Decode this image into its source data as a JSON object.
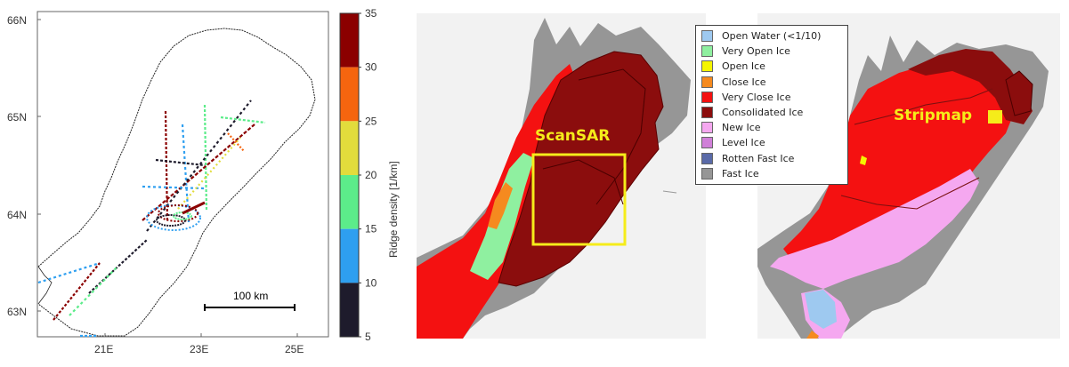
{
  "left_map": {
    "lat_ticks": [
      "66N",
      "65N",
      "64N",
      "63N"
    ],
    "lon_ticks": [
      "21E",
      "23E",
      "25E"
    ],
    "scale_bar_label": "100 km"
  },
  "colorbar": {
    "label": "Ridge density [1/km]",
    "ticks": [
      "35",
      "30",
      "25",
      "20",
      "15",
      "10",
      "5"
    ],
    "colors": [
      "#8b0000",
      "#f5650f",
      "#e2dc3c",
      "#5cec8a",
      "#2e9ff0",
      "#1e1b2c"
    ]
  },
  "center_map": {
    "box_label": "ScanSAR",
    "box_color": "#f5ec1a"
  },
  "right_map": {
    "marker_label": "Stripmap",
    "marker_color": "#f5ec1a"
  },
  "legend": {
    "items": [
      {
        "label": "Open Water (<1/10)",
        "color": "#9ec9f0"
      },
      {
        "label": "Very Open Ice",
        "color": "#8ff0a0"
      },
      {
        "label": "Open Ice",
        "color": "#f5f500"
      },
      {
        "label": "Close Ice",
        "color": "#f58a1f"
      },
      {
        "label": "Very Close Ice",
        "color": "#f41111"
      },
      {
        "label": "Consolidated Ice",
        "color": "#8b0d0d"
      },
      {
        "label": "New Ice",
        "color": "#f5a8f0"
      },
      {
        "label": "Level Ice",
        "color": "#d080d8"
      },
      {
        "label": "Rotten Fast Ice",
        "color": "#5a6aa8"
      },
      {
        "label": "Fast Ice",
        "color": "#969696"
      }
    ]
  }
}
